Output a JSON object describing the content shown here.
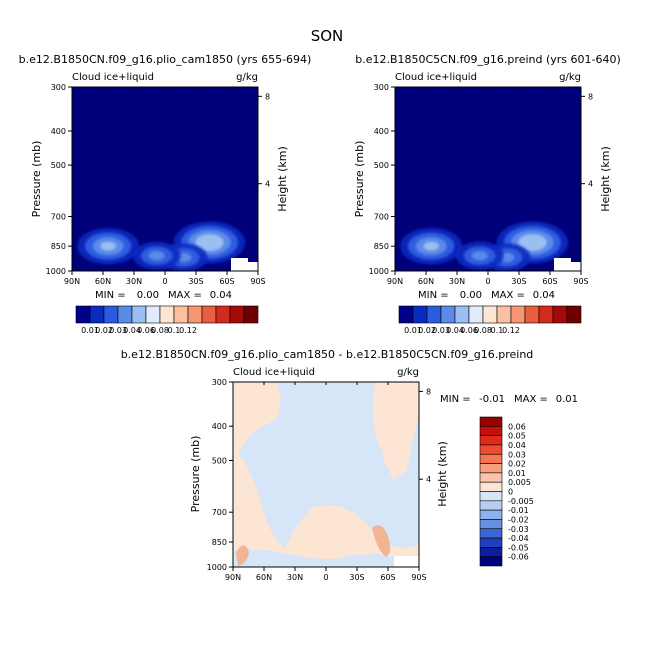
{
  "figure": {
    "title": "SON"
  },
  "chart_data": [
    {
      "type": "heatmap",
      "title": "b.e12.B1850CN.f09_g16.plio_cam1850 (yrs 655-694)",
      "variable": "Cloud ice+liquid",
      "units": "g/kg",
      "ylabel": "Pressure (mb)",
      "ylabel_right": "Height (km)",
      "x_ticks": [
        "90N",
        "60N",
        "30N",
        "0",
        "30S",
        "60S",
        "90S"
      ],
      "x_values": [
        90,
        60,
        30,
        0,
        -30,
        -60,
        -90
      ],
      "y_ticks": [
        "300",
        "400",
        "500",
        "700",
        "850",
        "1000"
      ],
      "y_values": [
        300,
        400,
        500,
        700,
        850,
        1000
      ],
      "y_log_scale": true,
      "right_ticks": [
        "8",
        "4"
      ],
      "right_values": [
        8,
        4
      ],
      "min_text": "MIN =",
      "min_value": "0.00",
      "max_text": "MAX =",
      "max_value": "0.04",
      "background_color": "#00007a",
      "features": [
        {
          "lat": 55,
          "p": 850,
          "peak": 0.03
        },
        {
          "lat": -43,
          "p": 830,
          "peak": 0.04
        },
        {
          "lat": -18,
          "p": 915,
          "peak": 0.015
        },
        {
          "lat": 8,
          "p": 905,
          "peak": 0.015
        }
      ],
      "colorbar": {
        "labels": [
          "0.01",
          "0.02",
          "0.03",
          "0.04",
          "0.06",
          "0.08",
          "0.1",
          "0.12"
        ],
        "colors": [
          "#00008c",
          "#0a2bbf",
          "#2d5be0",
          "#5c8ae8",
          "#9bbff3",
          "#e0ecfb",
          "#fde5d4",
          "#fbc0a0",
          "#f59675",
          "#e95e3f",
          "#d42a1c",
          "#a40a0a",
          "#700000"
        ]
      }
    },
    {
      "type": "heatmap",
      "title": "b.e12.B1850C5CN.f09_g16.preind (yrs 601-640)",
      "variable": "Cloud ice+liquid",
      "units": "g/kg",
      "ylabel": "Pressure (mb)",
      "ylabel_right": "Height (km)",
      "x_ticks": [
        "90N",
        "60N",
        "30N",
        "0",
        "30S",
        "60S",
        "90S"
      ],
      "x_values": [
        90,
        60,
        30,
        0,
        -30,
        -60,
        -90
      ],
      "y_ticks": [
        "300",
        "400",
        "500",
        "700",
        "850",
        "1000"
      ],
      "y_values": [
        300,
        400,
        500,
        700,
        850,
        1000
      ],
      "y_log_scale": true,
      "right_ticks": [
        "8",
        "4"
      ],
      "right_values": [
        8,
        4
      ],
      "min_text": "MIN =",
      "min_value": "0.00",
      "max_text": "MAX =",
      "max_value": "0.04",
      "background_color": "#00007a",
      "features": [
        {
          "lat": 55,
          "p": 850,
          "peak": 0.03
        },
        {
          "lat": -43,
          "p": 830,
          "peak": 0.04
        },
        {
          "lat": -18,
          "p": 915,
          "peak": 0.015
        },
        {
          "lat": 8,
          "p": 905,
          "peak": 0.015
        }
      ],
      "colorbar": {
        "labels": [
          "0.01",
          "0.02",
          "0.03",
          "0.04",
          "0.06",
          "0.08",
          "0.1",
          "0.12"
        ],
        "colors": [
          "#00008c",
          "#0a2bbf",
          "#2d5be0",
          "#5c8ae8",
          "#9bbff3",
          "#e0ecfb",
          "#fde5d4",
          "#fbc0a0",
          "#f59675",
          "#e95e3f",
          "#d42a1c",
          "#a40a0a",
          "#700000"
        ]
      }
    },
    {
      "type": "heatmap",
      "title": "b.e12.B1850CN.f09_g16.plio_cam1850 - b.e12.B1850C5CN.f09_g16.preind",
      "variable": "Cloud ice+liquid",
      "units": "g/kg",
      "ylabel": "Pressure (mb)",
      "ylabel_right": "Height (km)",
      "x_ticks": [
        "90N",
        "60N",
        "30N",
        "0",
        "30S",
        "60S",
        "90S"
      ],
      "x_values": [
        90,
        60,
        30,
        0,
        -30,
        -60,
        -90
      ],
      "y_ticks": [
        "300",
        "400",
        "500",
        "700",
        "850",
        "1000"
      ],
      "y_values": [
        300,
        400,
        500,
        700,
        850,
        1000
      ],
      "y_log_scale": true,
      "right_ticks": [
        "8",
        "4"
      ],
      "right_values": [
        8,
        4
      ],
      "min_text": "MIN =",
      "min_value": "-0.01",
      "max_text": "MAX =",
      "max_value": "0.01",
      "background_color": "#fde5d4",
      "negative_color": "#d6e6f8",
      "colorbar": {
        "labels": [
          "0.06",
          "0.05",
          "0.04",
          "0.03",
          "0.02",
          "0.01",
          "0.005",
          "0",
          "-0.005",
          "-0.01",
          "-0.02",
          "-0.03",
          "-0.04",
          "-0.05",
          "-0.06"
        ],
        "colors": [
          "#990000",
          "#c40f0f",
          "#e02a1a",
          "#f04c2e",
          "#f77550",
          "#f99e7c",
          "#fbc4a8",
          "#fde5d4",
          "#d6e6f8",
          "#b5cff2",
          "#8fb2ec",
          "#6690e2",
          "#3c66d6",
          "#1d3fc0",
          "#0a1fa0",
          "#000080"
        ]
      }
    }
  ]
}
